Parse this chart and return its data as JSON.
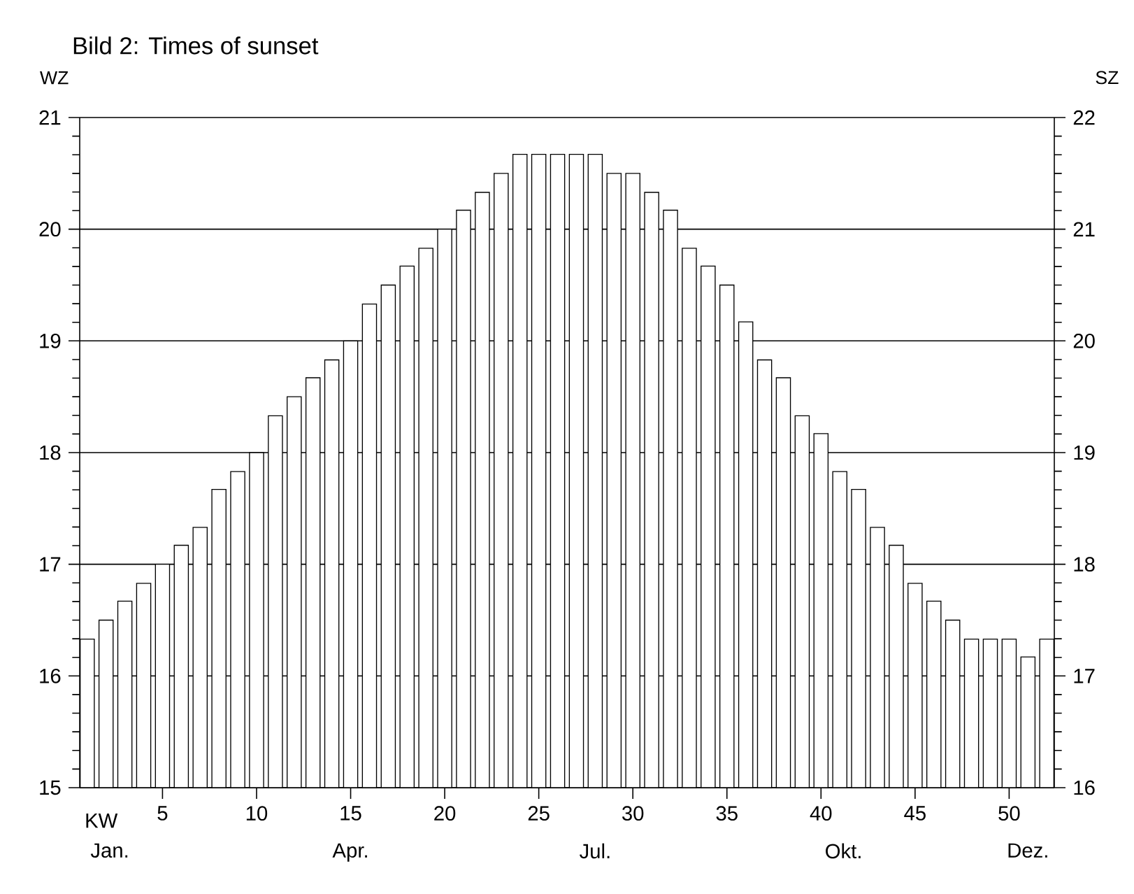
{
  "chart_data": {
    "type": "bar",
    "title": "Bild 2: Times of sunset",
    "xlabel": "KW",
    "ylabel": "WZ",
    "y2label": "SZ",
    "x": [
      1,
      2,
      3,
      4,
      5,
      6,
      7,
      8,
      9,
      10,
      11,
      12,
      13,
      14,
      15,
      16,
      17,
      18,
      19,
      20,
      21,
      22,
      23,
      24,
      25,
      26,
      27,
      28,
      29,
      30,
      31,
      32,
      33,
      34,
      35,
      36,
      37,
      38,
      39,
      40,
      41,
      42,
      43,
      44,
      45,
      46,
      47,
      48,
      49,
      50,
      51,
      52
    ],
    "values": [
      16.33,
      16.5,
      16.67,
      16.83,
      17.0,
      17.17,
      17.33,
      17.67,
      17.83,
      18.0,
      18.33,
      18.5,
      18.67,
      18.83,
      19.0,
      19.33,
      19.5,
      19.67,
      19.83,
      20.0,
      20.17,
      20.33,
      20.5,
      20.67,
      20.67,
      20.67,
      20.67,
      20.67,
      20.5,
      20.5,
      20.33,
      20.17,
      19.83,
      19.67,
      19.5,
      19.17,
      18.83,
      18.67,
      18.33,
      18.17,
      17.83,
      17.67,
      17.33,
      17.17,
      16.83,
      16.67,
      16.5,
      16.33,
      16.33,
      16.33,
      16.17,
      16.33
    ],
    "color": "#ffffff",
    "xlim": [
      0.6,
      52.4
    ],
    "xticks": [
      5,
      10,
      15,
      20,
      25,
      30,
      35,
      40,
      45,
      50
    ],
    "ylim": [
      15,
      21
    ],
    "yticks": [
      15,
      16,
      17,
      18,
      19,
      20,
      21
    ],
    "y2lim": [
      16,
      22
    ],
    "y2ticks": [
      16,
      17,
      18,
      19,
      20,
      21,
      22
    ],
    "grid": "y",
    "annotations": [
      "Jan.",
      "Apr.",
      "Jul.",
      "Okt.",
      "Dez."
    ]
  }
}
